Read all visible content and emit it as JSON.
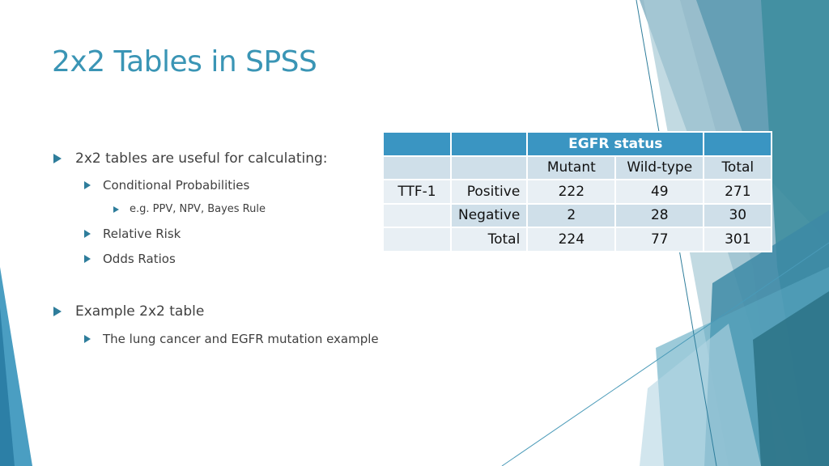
{
  "title": "2x2 Tables in SPSS",
  "bullets": {
    "b1": "2x2 tables are useful for calculating:",
    "b1_1": "Conditional Probabilities",
    "b1_1_1": "e.g. PPV, NPV, Bayes Rule",
    "b1_2": "Relative Risk",
    "b1_3": "Odds Ratios",
    "b2": "Example 2x2 table",
    "b2_1": "The lung cancer and EGFR mutation example"
  },
  "table": {
    "group_header": "EGFR status",
    "columns": [
      "Mutant",
      "Wild-type",
      "Total"
    ],
    "row_group": "TTF-1",
    "rows": [
      {
        "label": "Positive",
        "values": [
          "222",
          "49",
          "271"
        ]
      },
      {
        "label": "Negative",
        "values": [
          "2",
          "28",
          "30"
        ]
      },
      {
        "label": "Total",
        "values": [
          "224",
          "77",
          "301"
        ]
      }
    ]
  },
  "colors": {
    "title": "#3a95b5",
    "header": "#3a95c2",
    "row_dark": "#cfdfe9",
    "row_light": "#e8eff4",
    "accent": "#2e7d9b"
  }
}
